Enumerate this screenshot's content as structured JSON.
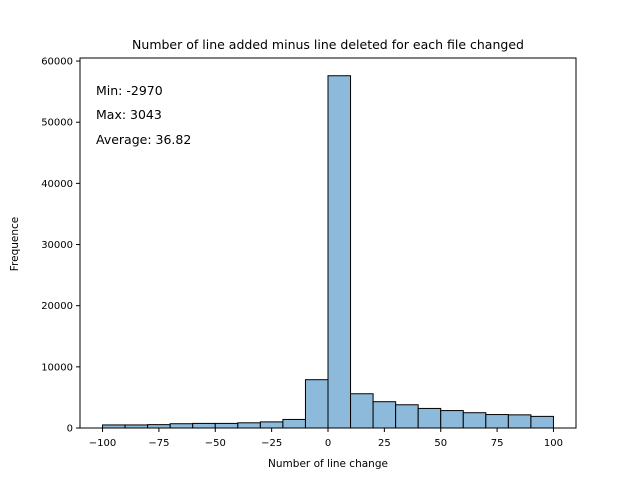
{
  "chart_data": {
    "type": "bar",
    "title": "Number of line added minus line deleted for each file changed",
    "xlabel": "Number of line change",
    "ylabel": "Frequence",
    "xlim": [
      -110,
      110
    ],
    "ylim": [
      0,
      60500
    ],
    "xticks": [
      -100,
      -75,
      -50,
      -25,
      0,
      25,
      50,
      75,
      100
    ],
    "yticks": [
      0,
      10000,
      20000,
      30000,
      40000,
      50000,
      60000
    ],
    "bins": [
      {
        "x0": -100,
        "x1": -90,
        "value": 500
      },
      {
        "x0": -90,
        "x1": -80,
        "value": 500
      },
      {
        "x0": -80,
        "x1": -70,
        "value": 550
      },
      {
        "x0": -70,
        "x1": -60,
        "value": 700
      },
      {
        "x0": -60,
        "x1": -50,
        "value": 750
      },
      {
        "x0": -50,
        "x1": -40,
        "value": 750
      },
      {
        "x0": -40,
        "x1": -30,
        "value": 850
      },
      {
        "x0": -30,
        "x1": -20,
        "value": 1000
      },
      {
        "x0": -20,
        "x1": -10,
        "value": 1400
      },
      {
        "x0": -10,
        "x1": 0,
        "value": 7900
      },
      {
        "x0": 0,
        "x1": 10,
        "value": 57600
      },
      {
        "x0": 10,
        "x1": 20,
        "value": 5600
      },
      {
        "x0": 20,
        "x1": 30,
        "value": 4300
      },
      {
        "x0": 30,
        "x1": 40,
        "value": 3800
      },
      {
        "x0": 40,
        "x1": 50,
        "value": 3200
      },
      {
        "x0": 50,
        "x1": 60,
        "value": 2850
      },
      {
        "x0": 60,
        "x1": 70,
        "value": 2500
      },
      {
        "x0": 70,
        "x1": 80,
        "value": 2200
      },
      {
        "x0": 80,
        "x1": 90,
        "value": 2150
      },
      {
        "x0": 90,
        "x1": 100,
        "value": 1900
      }
    ],
    "annotations": [
      "Min: -2970",
      "Max: 3043",
      "Average: 36.82"
    ],
    "grid": false,
    "bar_color": "#8dbadb",
    "edge_color": "#000000"
  }
}
